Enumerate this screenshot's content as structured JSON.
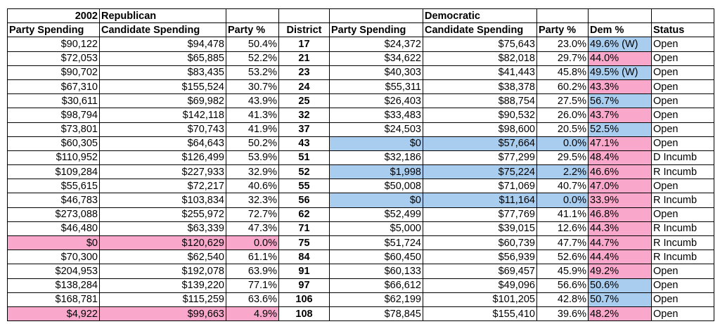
{
  "header": {
    "year": "2002",
    "rep_group": "Republican",
    "dem_group": "Democratic",
    "columns": [
      "Party Spending",
      "Candidate Spending",
      "Party %",
      "District",
      "Party Spending",
      "Candidate Spending",
      "Party %",
      "Dem %",
      "Status"
    ]
  },
  "colors": {
    "pink": "#f9a8cc",
    "blue": "#a9cdef"
  },
  "rows": [
    {
      "r_party": "$90,122",
      "r_cand": "$94,478",
      "r_pct": "50.4%",
      "district": "17",
      "d_party": "$24,372",
      "d_cand": "$75,643",
      "d_pct": "23.0%",
      "dem_pct": "49.6% (W)",
      "status": "Open",
      "hl_r": "",
      "hl_d": "",
      "dem_hl": "blue"
    },
    {
      "r_party": "$72,053",
      "r_cand": "$65,885",
      "r_pct": "52.2%",
      "district": "21",
      "d_party": "$34,622",
      "d_cand": "$82,018",
      "d_pct": "29.7%",
      "dem_pct": "44.0%",
      "status": "Open",
      "hl_r": "",
      "hl_d": "",
      "dem_hl": "pink"
    },
    {
      "r_party": "$90,702",
      "r_cand": "$83,435",
      "r_pct": "53.2%",
      "district": "23",
      "d_party": "$40,303",
      "d_cand": "$41,443",
      "d_pct": "45.8%",
      "dem_pct": "49.5% (W)",
      "status": "Open",
      "hl_r": "",
      "hl_d": "",
      "dem_hl": "blue"
    },
    {
      "r_party": "$67,310",
      "r_cand": "$155,524",
      "r_pct": "30.7%",
      "district": "24",
      "d_party": "$55,311",
      "d_cand": "$38,378",
      "d_pct": "60.2%",
      "dem_pct": "43.3%",
      "status": "Open",
      "hl_r": "",
      "hl_d": "",
      "dem_hl": "pink"
    },
    {
      "r_party": "$30,611",
      "r_cand": "$69,982",
      "r_pct": "43.9%",
      "district": "25",
      "d_party": "$26,403",
      "d_cand": "$88,754",
      "d_pct": "27.5%",
      "dem_pct": "56.7%",
      "status": "Open",
      "hl_r": "",
      "hl_d": "",
      "dem_hl": "blue"
    },
    {
      "r_party": "$98,794",
      "r_cand": "$142,118",
      "r_pct": "41.3%",
      "district": "32",
      "d_party": "$33,483",
      "d_cand": "$90,532",
      "d_pct": "26.0%",
      "dem_pct": "43.7%",
      "status": "Open",
      "hl_r": "",
      "hl_d": "",
      "dem_hl": "pink"
    },
    {
      "r_party": "$73,801",
      "r_cand": "$70,743",
      "r_pct": "41.9%",
      "district": "37",
      "d_party": "$24,503",
      "d_cand": "$98,600",
      "d_pct": "20.5%",
      "dem_pct": "52.5%",
      "status": "Open",
      "hl_r": "",
      "hl_d": "",
      "dem_hl": "blue"
    },
    {
      "r_party": "$60,305",
      "r_cand": "$64,643",
      "r_pct": "50.2%",
      "district": "43",
      "d_party": "$0",
      "d_cand": "$57,664",
      "d_pct": "0.0%",
      "dem_pct": "47.1%",
      "status": "Open",
      "hl_r": "",
      "hl_d": "blue",
      "dem_hl": "pink"
    },
    {
      "r_party": "$110,952",
      "r_cand": "$126,499",
      "r_pct": "53.9%",
      "district": "51",
      "d_party": "$32,186",
      "d_cand": "$77,299",
      "d_pct": "29.5%",
      "dem_pct": "48.4%",
      "status": "D Incumb",
      "hl_r": "",
      "hl_d": "",
      "dem_hl": "pink"
    },
    {
      "r_party": "$109,284",
      "r_cand": "$227,933",
      "r_pct": "32.9%",
      "district": "52",
      "d_party": "$1,998",
      "d_cand": "$75,224",
      "d_pct": "2.2%",
      "dem_pct": "46.6%",
      "status": "R Incumb",
      "hl_r": "",
      "hl_d": "blue",
      "dem_hl": "pink"
    },
    {
      "r_party": "$55,615",
      "r_cand": "$72,217",
      "r_pct": "40.6%",
      "district": "55",
      "d_party": "$50,008",
      "d_cand": "$71,069",
      "d_pct": "40.7%",
      "dem_pct": "47.0%",
      "status": "Open",
      "hl_r": "",
      "hl_d": "",
      "dem_hl": "pink"
    },
    {
      "r_party": "$46,783",
      "r_cand": "$103,834",
      "r_pct": "32.3%",
      "district": "56",
      "d_party": "$0",
      "d_cand": "$11,164",
      "d_pct": "0.0%",
      "dem_pct": "33.9%",
      "status": "R Incumb",
      "hl_r": "",
      "hl_d": "blue",
      "dem_hl": "pink"
    },
    {
      "r_party": "$273,088",
      "r_cand": "$255,972",
      "r_pct": "72.7%",
      "district": "62",
      "d_party": "$52,499",
      "d_cand": "$77,769",
      "d_pct": "41.1%",
      "dem_pct": "46.8%",
      "status": "Open",
      "hl_r": "",
      "hl_d": "",
      "dem_hl": "pink"
    },
    {
      "r_party": "$46,480",
      "r_cand": "$63,339",
      "r_pct": "47.3%",
      "district": "71",
      "d_party": "$5,000",
      "d_cand": "$39,015",
      "d_pct": "12.6%",
      "dem_pct": "44.3%",
      "status": "R Incumb",
      "hl_r": "",
      "hl_d": "",
      "dem_hl": "pink"
    },
    {
      "r_party": "$0",
      "r_cand": "$120,629",
      "r_pct": "0.0%",
      "district": "75",
      "d_party": "$51,724",
      "d_cand": "$60,739",
      "d_pct": "47.7%",
      "dem_pct": "44.7%",
      "status": "R Incumb",
      "hl_r": "pink",
      "hl_d": "",
      "dem_hl": "pink"
    },
    {
      "r_party": "$70,300",
      "r_cand": "$62,540",
      "r_pct": "61.1%",
      "district": "84",
      "d_party": "$60,450",
      "d_cand": "$56,939",
      "d_pct": "52.6%",
      "dem_pct": "44.4%",
      "status": "R Incumb",
      "hl_r": "",
      "hl_d": "",
      "dem_hl": "pink"
    },
    {
      "r_party": "$204,953",
      "r_cand": "$192,078",
      "r_pct": "63.9%",
      "district": "91",
      "d_party": "$60,133",
      "d_cand": "$69,457",
      "d_pct": "45.9%",
      "dem_pct": "49.2%",
      "status": "Open",
      "hl_r": "",
      "hl_d": "",
      "dem_hl": "pink"
    },
    {
      "r_party": "$138,284",
      "r_cand": "$139,220",
      "r_pct": "77.1%",
      "district": "97",
      "d_party": "$66,612",
      "d_cand": "$49,096",
      "d_pct": "56.6%",
      "dem_pct": "50.6%",
      "status": "Open",
      "hl_r": "",
      "hl_d": "",
      "dem_hl": "blue"
    },
    {
      "r_party": "$168,781",
      "r_cand": "$115,259",
      "r_pct": "63.6%",
      "district": "106",
      "d_party": "$62,199",
      "d_cand": "$101,205",
      "d_pct": "42.8%",
      "dem_pct": "50.7%",
      "status": "Open",
      "hl_r": "",
      "hl_d": "",
      "dem_hl": "blue"
    },
    {
      "r_party": "$4,922",
      "r_cand": "$99,663",
      "r_pct": "4.9%",
      "district": "108",
      "d_party": "$78,845",
      "d_cand": "$155,410",
      "d_pct": "39.6%",
      "dem_pct": "48.2%",
      "status": "Open",
      "hl_r": "pink",
      "hl_d": "",
      "dem_hl": "pink"
    }
  ]
}
